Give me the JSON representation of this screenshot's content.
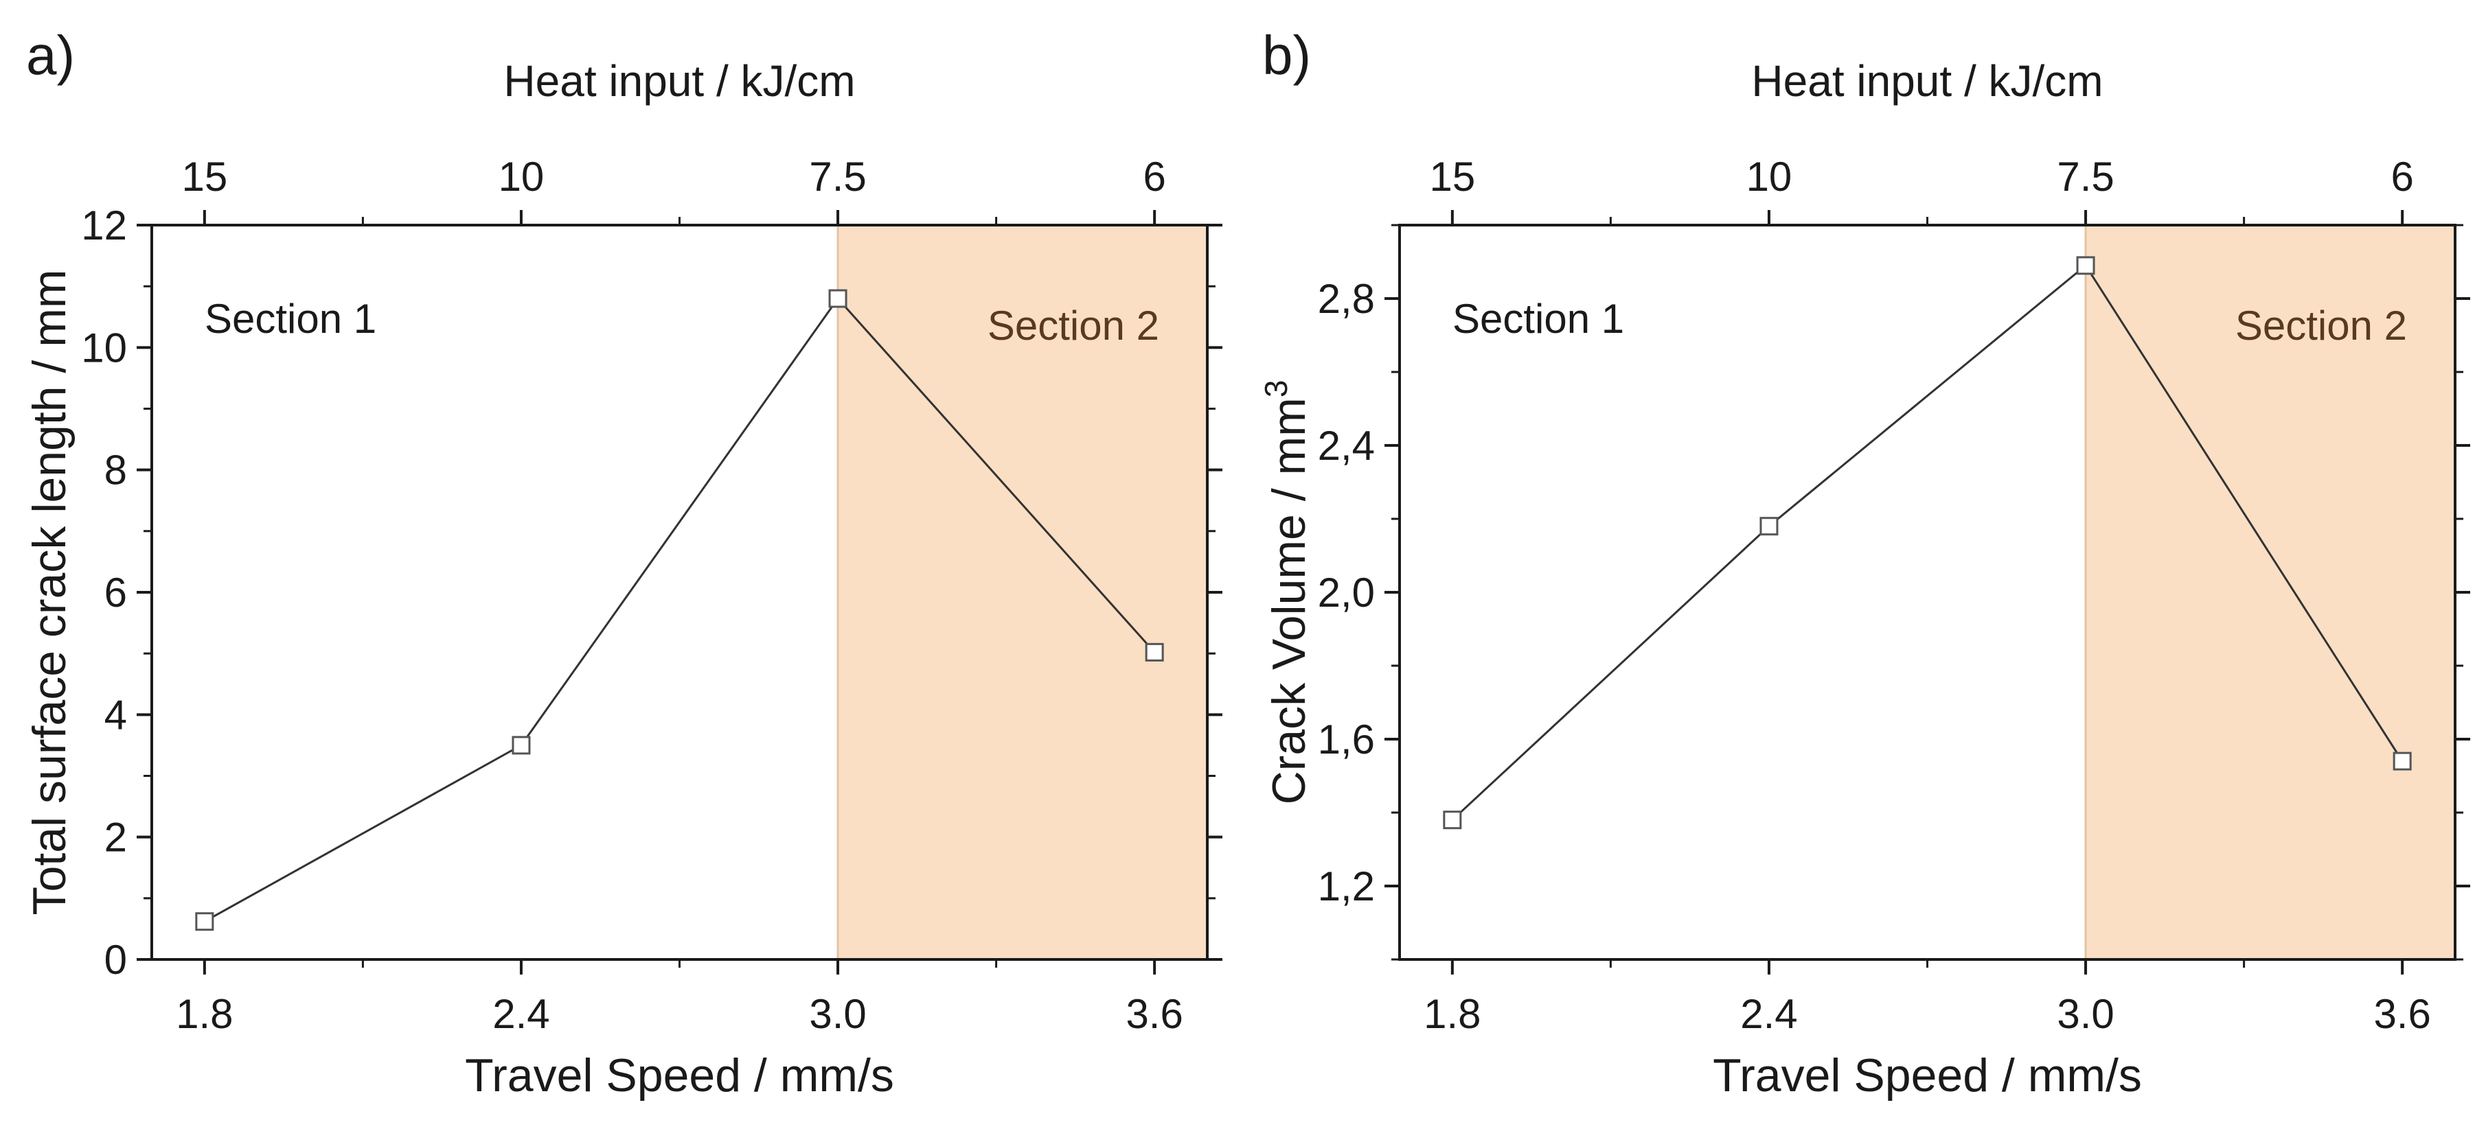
{
  "chart_data": [
    {
      "type": "line",
      "panel_label": "a)",
      "xlabel": "Travel Speed / mm/s",
      "top_xlabel": "Heat input / kJ/cm",
      "ylabel": "Total surface crack length / mm",
      "x": [
        1.8,
        2.4,
        3.0,
        3.6
      ],
      "x_tick_labels": [
        "1.8",
        "2.4",
        "3.0",
        "3.6"
      ],
      "top_tick_labels": [
        "15",
        "10",
        "7.5",
        "6"
      ],
      "series": [
        {
          "name": "crack length",
          "values": [
            0.62,
            3.5,
            10.8,
            5.02
          ]
        }
      ],
      "xlim": [
        1.7,
        3.7
      ],
      "ylim": [
        0,
        12
      ],
      "y_ticks": [
        0,
        2,
        4,
        6,
        8,
        10,
        12
      ],
      "y_tick_labels": [
        "0",
        "2",
        "4",
        "6",
        "8",
        "10",
        "12"
      ],
      "y_minor_step": 1,
      "shaded_region": {
        "x_from": 3.0,
        "x_to": 3.7,
        "color": "#fbdfc4"
      },
      "annotations": [
        {
          "text": "Section 1",
          "color": "#1a1a1a"
        },
        {
          "text": "Section 2",
          "color": "#5a3a1e"
        }
      ],
      "line_color": "#333333",
      "marker_color": "#555555"
    },
    {
      "type": "line",
      "panel_label": "b)",
      "xlabel": "Travel Speed / mm/s",
      "top_xlabel": "Heat input / kJ/cm",
      "ylabel": "Crack Volume / mm",
      "ylabel_superscript": "3",
      "x": [
        1.8,
        2.4,
        3.0,
        3.6
      ],
      "x_tick_labels": [
        "1.8",
        "2.4",
        "3.0",
        "3.6"
      ],
      "top_tick_labels": [
        "15",
        "10",
        "7.5",
        "6"
      ],
      "series": [
        {
          "name": "crack volume",
          "values": [
            1.38,
            2.18,
            2.89,
            1.54
          ]
        }
      ],
      "xlim": [
        1.7,
        3.7
      ],
      "ylim": [
        1.0,
        3.0
      ],
      "y_ticks": [
        1.2,
        1.6,
        2.0,
        2.4,
        2.8
      ],
      "y_tick_labels": [
        "1,2",
        "1,6",
        "2,0",
        "2,4",
        "2,8"
      ],
      "y_minor_step": 0.2,
      "shaded_region": {
        "x_from": 3.0,
        "x_to": 3.7,
        "color": "#fbdfc4"
      },
      "annotations": [
        {
          "text": "Section 1",
          "color": "#1a1a1a"
        },
        {
          "text": "Section 2",
          "color": "#5a3a1e"
        }
      ],
      "line_color": "#333333",
      "marker_color": "#555555"
    }
  ]
}
